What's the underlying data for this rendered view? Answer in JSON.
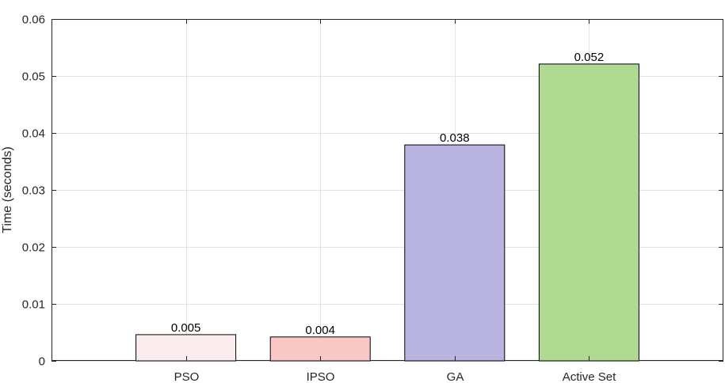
{
  "chart_data": {
    "type": "bar",
    "title": "",
    "xlabel": "",
    "ylabel": "Time (seconds)",
    "categories": [
      "PSO",
      "IPSO",
      "GA",
      "Active Set"
    ],
    "values": [
      0.0046,
      0.0042,
      0.0379,
      0.0521
    ],
    "data_labels": [
      "0.005",
      "0.004",
      "0.038",
      "0.052"
    ],
    "colors": [
      "#faecec",
      "#f8c9c6",
      "#bab5e0",
      "#b0da92"
    ],
    "ylim": [
      0,
      0.06
    ],
    "xlim": [
      0,
      5
    ],
    "yticks": [
      0,
      0.01,
      0.02,
      0.03,
      0.04,
      0.05,
      0.06
    ],
    "ytick_labels": [
      "0",
      "0.01",
      "0.02",
      "0.03",
      "0.04",
      "0.05",
      "0.06"
    ],
    "grid": true,
    "legend": "none"
  }
}
